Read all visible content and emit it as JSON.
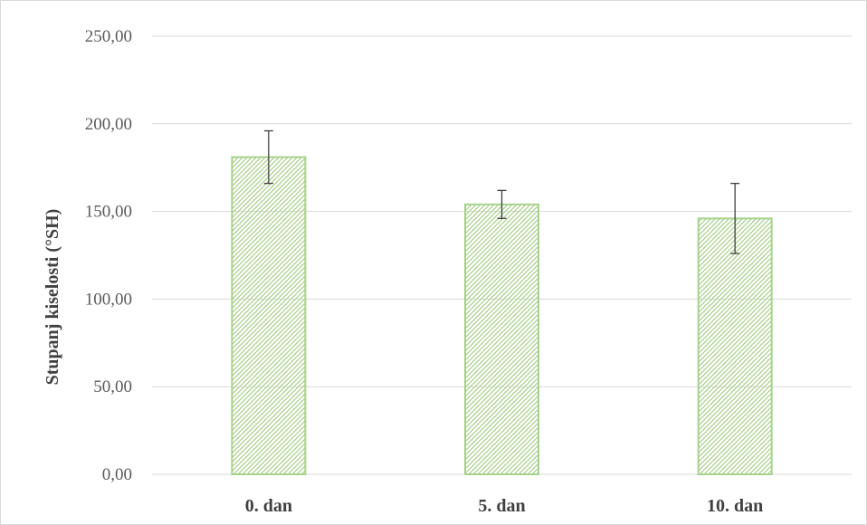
{
  "chart_data": {
    "type": "bar",
    "title": "",
    "xlabel": "",
    "ylabel": "Stupanj kiselosti (°SH)",
    "categories": [
      "0. dan",
      "5. dan",
      "10. dan"
    ],
    "values": [
      181,
      154,
      146
    ],
    "error": [
      15,
      8,
      20
    ],
    "ylim": [
      0,
      250
    ],
    "yticks": [
      0,
      50,
      100,
      150,
      200,
      250
    ],
    "ytick_labels": [
      "0,00",
      "50,00",
      "100,00",
      "150,00",
      "200,00",
      "250,00"
    ],
    "grid": true,
    "legend": "none",
    "bar_fill": "hatched",
    "colors": {
      "bar_stroke": "#a9d18e",
      "bar_hatch": "#a9d18e",
      "gridline": "#d9d9d9",
      "error_bar": "#404040"
    }
  }
}
